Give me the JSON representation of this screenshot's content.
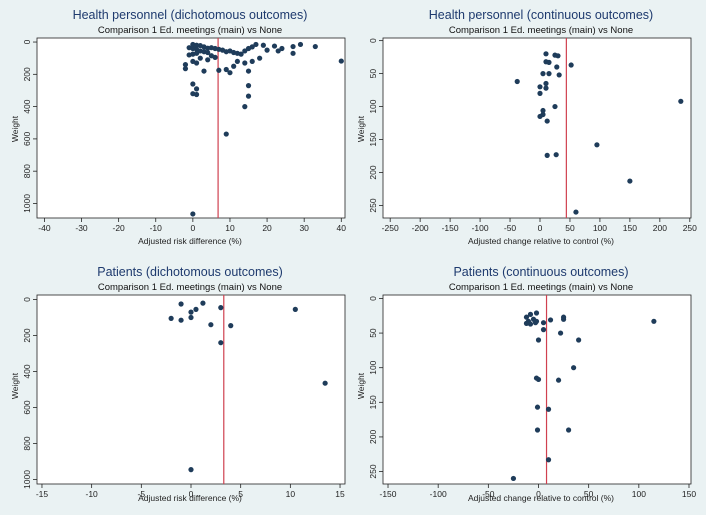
{
  "chart_data": [
    {
      "type": "scatter",
      "title": "Health personnel (dichotomous outcomes)",
      "subtitle": "Comparison 1 Ed. meetings (main) vs None",
      "xlabel": "Adjusted risk difference (%)",
      "ylabel": "Weight",
      "xlim": [
        -42,
        41
      ],
      "ylim": [
        1090,
        -25
      ],
      "xticks": [
        -40,
        -30,
        -20,
        -10,
        0,
        10,
        20,
        30,
        40
      ],
      "yticks": [
        0,
        200,
        400,
        600,
        800,
        1000
      ],
      "reference_line": 6.8,
      "colors": {
        "point": "#1f3c5a",
        "reference": "#d04050"
      },
      "points": [
        [
          0,
          15
        ],
        [
          1,
          20
        ],
        [
          2,
          22
        ],
        [
          -1,
          35
        ],
        [
          0,
          40
        ],
        [
          1,
          45
        ],
        [
          3,
          30
        ],
        [
          4,
          38
        ],
        [
          5,
          35
        ],
        [
          6,
          40
        ],
        [
          7,
          45
        ],
        [
          2,
          55
        ],
        [
          3,
          60
        ],
        [
          4,
          65
        ],
        [
          1,
          70
        ],
        [
          0,
          75
        ],
        [
          -1,
          80
        ],
        [
          5,
          85
        ],
        [
          8,
          50
        ],
        [
          9,
          60
        ],
        [
          10,
          55
        ],
        [
          11,
          65
        ],
        [
          12,
          70
        ],
        [
          13,
          75
        ],
        [
          14,
          55
        ],
        [
          15,
          40
        ],
        [
          16,
          30
        ],
        [
          17,
          15
        ],
        [
          19,
          20
        ],
        [
          22,
          25
        ],
        [
          24,
          40
        ],
        [
          20,
          50
        ],
        [
          23,
          55
        ],
        [
          27,
          28
        ],
        [
          29,
          15
        ],
        [
          33,
          28
        ],
        [
          40,
          118
        ],
        [
          27,
          70
        ],
        [
          2,
          100
        ],
        [
          4,
          110
        ],
        [
          6,
          95
        ],
        [
          0,
          120
        ],
        [
          1,
          130
        ],
        [
          -2,
          140
        ],
        [
          -2,
          165
        ],
        [
          3,
          180
        ],
        [
          7,
          175
        ],
        [
          9,
          170
        ],
        [
          11,
          150
        ],
        [
          12,
          120
        ],
        [
          10,
          190
        ],
        [
          15,
          180
        ],
        [
          14,
          130
        ],
        [
          16,
          120
        ],
        [
          18,
          100
        ],
        [
          0,
          260
        ],
        [
          1,
          290
        ],
        [
          0,
          320
        ],
        [
          1,
          325
        ],
        [
          15,
          270
        ],
        [
          15,
          335
        ],
        [
          14,
          400
        ],
        [
          9,
          570
        ],
        [
          0,
          1065
        ]
      ]
    },
    {
      "type": "scatter",
      "title": "Health personnel (continuous outcomes)",
      "subtitle": "Comparison 1 Ed. meetings (main) vs None",
      "xlabel": "Adjusted change relative to control (%)",
      "ylabel": "Weight",
      "xlim": [
        -262,
        252
      ],
      "ylim": [
        269,
        -4
      ],
      "xticks": [
        -250,
        -200,
        -150,
        -100,
        -50,
        0,
        50,
        100,
        150,
        200,
        250
      ],
      "yticks": [
        0,
        50,
        100,
        150,
        200,
        250
      ],
      "reference_line": 44,
      "colors": {
        "point": "#1f3c5a",
        "reference": "#d04050"
      },
      "points": [
        [
          10,
          20
        ],
        [
          25,
          22
        ],
        [
          30,
          23
        ],
        [
          10,
          32
        ],
        [
          15,
          33
        ],
        [
          28,
          40
        ],
        [
          52,
          37
        ],
        [
          5,
          50
        ],
        [
          15,
          50
        ],
        [
          32,
          52
        ],
        [
          -38,
          62
        ],
        [
          10,
          65
        ],
        [
          0,
          70
        ],
        [
          10,
          72
        ],
        [
          0,
          80
        ],
        [
          25,
          100
        ],
        [
          5,
          106
        ],
        [
          0,
          115
        ],
        [
          5,
          112
        ],
        [
          12,
          122
        ],
        [
          235,
          92
        ],
        [
          95,
          158
        ],
        [
          150,
          213
        ],
        [
          12,
          174
        ],
        [
          27,
          173
        ],
        [
          60,
          260
        ]
      ]
    },
    {
      "type": "scatter",
      "title": "Patients (dichotomous outcomes)",
      "subtitle": "Comparison 1 Ed. meetings (main) vs None",
      "xlabel": "Adjusted risk difference (%)",
      "ylabel": "Weight",
      "xlim": [
        -15.5,
        15.5
      ],
      "ylim": [
        1025,
        -25
      ],
      "xticks": [
        -15,
        -10,
        -5,
        0,
        5,
        10,
        15
      ],
      "yticks": [
        0,
        200,
        400,
        600,
        800,
        1000
      ],
      "reference_line": 3.3,
      "colors": {
        "point": "#1f3c5a",
        "reference": "#d04050"
      },
      "points": [
        [
          -1,
          25
        ],
        [
          1.2,
          20
        ],
        [
          3,
          45
        ],
        [
          0.5,
          55
        ],
        [
          0,
          70
        ],
        [
          -2,
          105
        ],
        [
          -1,
          115
        ],
        [
          0,
          100
        ],
        [
          2,
          140
        ],
        [
          4,
          145
        ],
        [
          10.5,
          55
        ],
        [
          3,
          240
        ],
        [
          13.5,
          465
        ],
        [
          0,
          945
        ]
      ]
    },
    {
      "type": "scatter",
      "title": "Patients (continuous outcomes)",
      "subtitle": "Comparison 1 Ed. meetings (main) vs None",
      "xlabel": "Adjusted change relative to control (%)",
      "ylabel": "Weight",
      "xlim": [
        -155,
        152
      ],
      "ylim": [
        268,
        -5
      ],
      "xticks": [
        -150,
        -100,
        -50,
        0,
        50,
        100,
        150
      ],
      "yticks": [
        0,
        50,
        100,
        150,
        200,
        250
      ],
      "reference_line": 8,
      "colors": {
        "point": "#1f3c5a",
        "reference": "#d04050"
      },
      "points": [
        [
          -2,
          21
        ],
        [
          -8,
          23
        ],
        [
          -12,
          27
        ],
        [
          -5,
          30
        ],
        [
          -10,
          33
        ],
        [
          -2,
          33
        ],
        [
          5,
          35
        ],
        [
          -12,
          36
        ],
        [
          -8,
          37
        ],
        [
          -3,
          35
        ],
        [
          12,
          31
        ],
        [
          25,
          27
        ],
        [
          25,
          30
        ],
        [
          115,
          33
        ],
        [
          22,
          50
        ],
        [
          0,
          60
        ],
        [
          40,
          60
        ],
        [
          5,
          45
        ],
        [
          35,
          100
        ],
        [
          20,
          118
        ],
        [
          -2,
          115
        ],
        [
          0,
          117
        ],
        [
          10,
          160
        ],
        [
          -1,
          157
        ],
        [
          30,
          190
        ],
        [
          -1,
          190
        ],
        [
          10,
          233
        ],
        [
          -25,
          260
        ]
      ]
    }
  ]
}
